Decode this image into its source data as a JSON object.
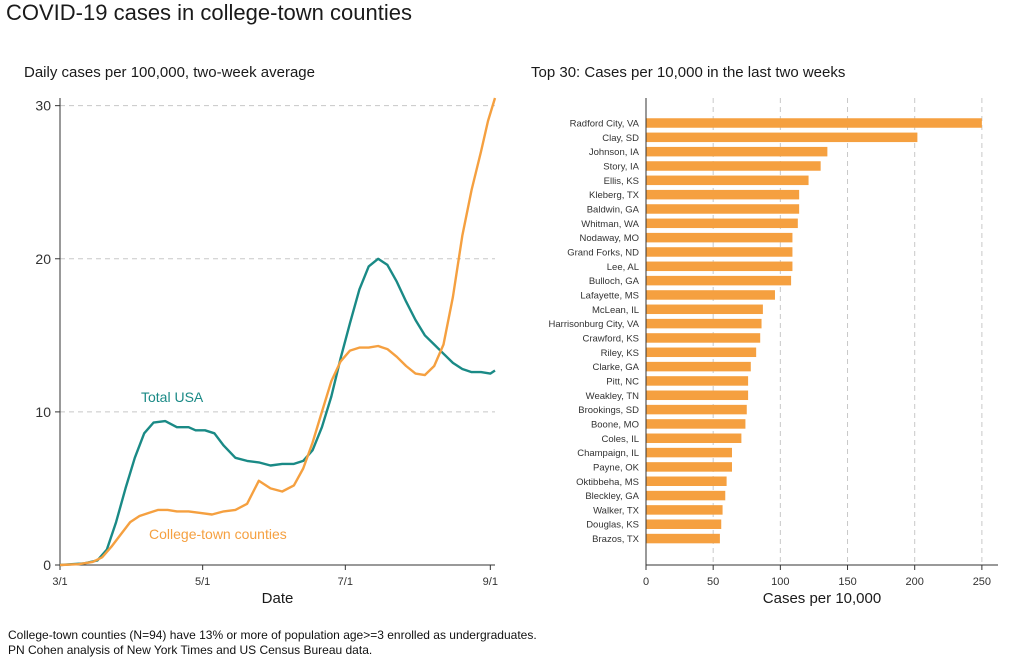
{
  "title": "COVID-19 cases in college-town counties",
  "footnotes": {
    "line1": "College-town counties (N=94) have 13% or more of population age>=3 enrolled as undergraduates.",
    "line2": "PN Cohen analysis of New York Times and US Census Bureau data."
  },
  "colors": {
    "teal": "#1a8a86",
    "orange": "#f5a040",
    "grid": "#c8c8c8",
    "axis": "#333333"
  },
  "chart_data": [
    {
      "type": "line",
      "title": "Daily cases per 100,000, two-week average",
      "xlabel": "Date",
      "ylabel": "",
      "x_ticks": [
        "3/1",
        "5/1",
        "7/1",
        "9/1"
      ],
      "x_tick_days": [
        0,
        61,
        122,
        184
      ],
      "y_ticks": [
        "0",
        "10",
        "20",
        "30"
      ],
      "y_tick_values": [
        0,
        10,
        20,
        30
      ],
      "ylim": [
        0,
        30.5
      ],
      "xlim": [
        0,
        186
      ],
      "grid": "horizontal dashed",
      "series": [
        {
          "name": "Total USA",
          "color": "#1a8a86",
          "label": "Total USA",
          "x": [
            0,
            10,
            16,
            20,
            24,
            28,
            32,
            36,
            40,
            45,
            50,
            55,
            58,
            62,
            66,
            70,
            75,
            80,
            85,
            90,
            95,
            100,
            104,
            108,
            112,
            116,
            120,
            124,
            128,
            132,
            136,
            140,
            144,
            148,
            152,
            156,
            160,
            164,
            168,
            172,
            176,
            180,
            184,
            186
          ],
          "values": [
            0,
            0.1,
            0.3,
            1.0,
            2.8,
            5.0,
            7.0,
            8.6,
            9.3,
            9.4,
            9.0,
            9.0,
            8.8,
            8.8,
            8.6,
            7.8,
            7.0,
            6.8,
            6.7,
            6.5,
            6.6,
            6.6,
            6.8,
            7.5,
            9.0,
            11.0,
            13.5,
            15.8,
            18.0,
            19.5,
            20.0,
            19.6,
            18.5,
            17.2,
            16.0,
            15.0,
            14.4,
            13.8,
            13.2,
            12.8,
            12.6,
            12.6,
            12.5,
            12.7
          ]
        },
        {
          "name": "College-town counties",
          "color": "#f5a040",
          "label": "College-town counties",
          "x": [
            0,
            8,
            14,
            18,
            22,
            26,
            30,
            34,
            38,
            42,
            46,
            50,
            55,
            60,
            65,
            70,
            75,
            80,
            85,
            90,
            95,
            100,
            104,
            108,
            112,
            116,
            120,
            124,
            128,
            132,
            136,
            140,
            144,
            148,
            152,
            156,
            160,
            164,
            168,
            172,
            176,
            180,
            183,
            186
          ],
          "values": [
            0,
            0.05,
            0.2,
            0.5,
            1.2,
            2.0,
            2.8,
            3.2,
            3.4,
            3.6,
            3.6,
            3.5,
            3.5,
            3.4,
            3.3,
            3.5,
            3.6,
            4.0,
            5.5,
            5.0,
            4.8,
            5.2,
            6.3,
            8.0,
            10.0,
            12.0,
            13.3,
            14.0,
            14.2,
            14.2,
            14.3,
            14.1,
            13.6,
            13.0,
            12.5,
            12.4,
            13.0,
            14.4,
            17.5,
            21.5,
            24.5,
            27.0,
            29.0,
            30.5
          ]
        }
      ]
    },
    {
      "type": "bar",
      "orientation": "horizontal",
      "title": "Top 30: Cases per 10,000 in the last two weeks",
      "xlabel": "Cases per 10,000",
      "x_ticks": [
        "0",
        "50",
        "100",
        "150",
        "200",
        "250"
      ],
      "x_tick_values": [
        0,
        50,
        100,
        150,
        200,
        250
      ],
      "xlim": [
        0,
        262
      ],
      "grid": "vertical dashed",
      "color": "#f5a040",
      "categories": [
        "Radford City, VA",
        "Clay, SD",
        "Johnson, IA",
        "Story, IA",
        "Ellis, KS",
        "Kleberg, TX",
        "Baldwin, GA",
        "Whitman, WA",
        "Nodaway, MO",
        "Grand Forks, ND",
        "Lee, AL",
        "Bulloch, GA",
        "Lafayette, MS",
        "McLean, IL",
        "Harrisonburg City, VA",
        "Crawford, KS",
        "Riley, KS",
        "Clarke, GA",
        "Pitt, NC",
        "Weakley, TN",
        "Brookings, SD",
        "Boone, MO",
        "Coles, IL",
        "Champaign, IL",
        "Payne, OK",
        "Oktibbeha, MS",
        "Bleckley, GA",
        "Walker, TX",
        "Douglas, KS",
        "Brazos, TX"
      ],
      "values": [
        250,
        202,
        135,
        130,
        121,
        114,
        114,
        113,
        109,
        109,
        109,
        108,
        96,
        87,
        86,
        85,
        82,
        78,
        76,
        76,
        75,
        74,
        71,
        64,
        64,
        60,
        59,
        57,
        56,
        55
      ]
    }
  ]
}
